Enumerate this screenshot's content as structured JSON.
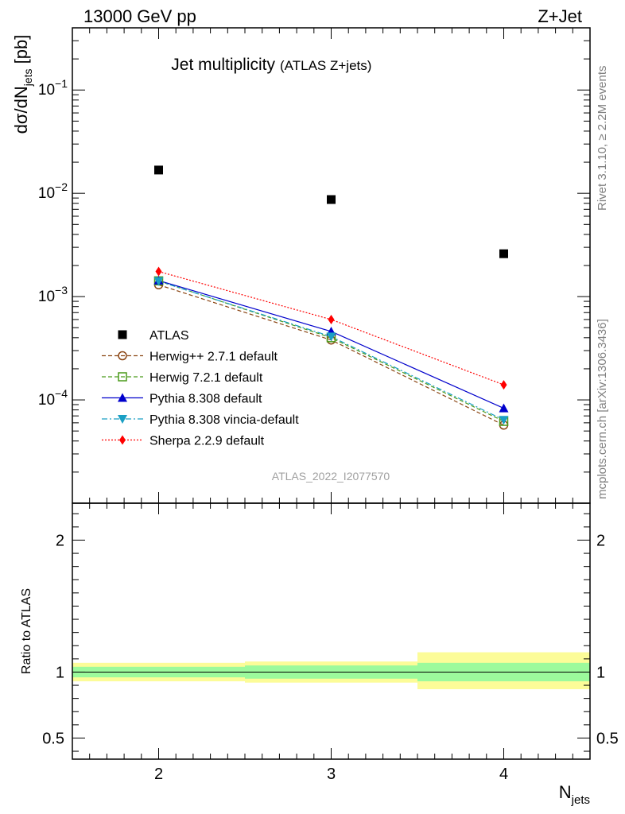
{
  "header": {
    "left": "13000 GeV pp",
    "right": "Z+Jet"
  },
  "side_labels": {
    "top": "Rivet 3.1.10, ≥ 2.2M events",
    "bottom": "mcplots.cern.ch [arXiv:1306.3436]"
  },
  "chart_data": [
    {
      "type": "scatter",
      "title": "Jet multiplicity",
      "subtitle": "(ATLAS Z+jets)",
      "watermark": "ATLAS_2022_I2077570",
      "xlabel": "N_jets",
      "ylabel": "dσ/dN_jets [pb]",
      "xlim": [
        1.5,
        4.5
      ],
      "ylim": [
        1e-05,
        0.4
      ],
      "yscale": "log",
      "x_ticks": [
        "2",
        "3",
        "4"
      ],
      "y_ticks": [
        "10^-4",
        "10^-3",
        "10^-2",
        "10^-1"
      ],
      "legend_position": "lower-left",
      "x": [
        2,
        3,
        4
      ],
      "series": [
        {
          "name": "ATLAS",
          "values": [
            0.0168,
            0.0087,
            0.0026
          ],
          "color": "#000000",
          "marker": "square",
          "line": "none"
        },
        {
          "name": "Herwig++ 2.7.1 default",
          "values": [
            0.0013,
            0.00038,
            5.7e-05
          ],
          "color": "#8b4513",
          "marker": "open-circle",
          "line": "dashed"
        },
        {
          "name": "Herwig 7.2.1 default",
          "values": [
            0.00142,
            0.0004,
            6.2e-05
          ],
          "color": "#4a9a1a",
          "marker": "open-square",
          "line": "dashed"
        },
        {
          "name": "Pythia 8.308 default",
          "values": [
            0.00143,
            0.00046,
            8.3e-05
          ],
          "color": "#0000cc",
          "marker": "triangle-up",
          "line": "solid"
        },
        {
          "name": "Pythia 8.308 vincia-default",
          "values": [
            0.00141,
            0.00041,
            6.4e-05
          ],
          "color": "#1a9fc4",
          "marker": "triangle-down",
          "line": "dashdot"
        },
        {
          "name": "Sherpa 2.2.9 default",
          "values": [
            0.00175,
            0.0006,
            0.00014
          ],
          "color": "#ff0000",
          "marker": "diamond",
          "line": "dotted"
        }
      ]
    },
    {
      "type": "area",
      "ylabel": "Ratio to ATLAS",
      "xlabel": "N_jets",
      "xlim": [
        1.5,
        4.5
      ],
      "ylim": [
        0.34,
        2.28
      ],
      "y_ticks": [
        "0.5",
        "1",
        "2"
      ],
      "x_ticks": [
        "2",
        "3",
        "4"
      ],
      "reference": 1,
      "bins": [
        {
          "x_low": 1.5,
          "x_high": 2.5,
          "inner": [
            0.96,
            1.04
          ],
          "outer": [
            0.93,
            1.07
          ]
        },
        {
          "x_low": 2.5,
          "x_high": 3.5,
          "inner": [
            0.95,
            1.05
          ],
          "outer": [
            0.92,
            1.08
          ]
        },
        {
          "x_low": 3.5,
          "x_high": 4.5,
          "inner": [
            0.93,
            1.07
          ],
          "outer": [
            0.87,
            1.15
          ]
        }
      ],
      "band_colors": {
        "inner": "#9cfa9c",
        "outer": "#fcfc98"
      }
    }
  ]
}
